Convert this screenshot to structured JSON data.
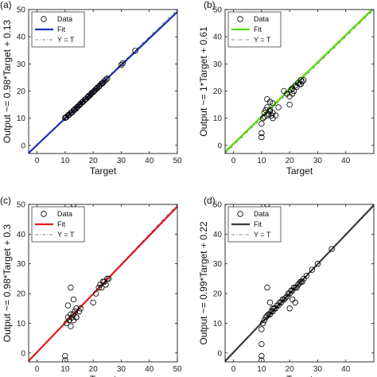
{
  "chart_data": [
    {
      "type": "scatter",
      "panel_label": "(a)",
      "xlabel": "Target",
      "ylabel": "Output ~= 0.98*Target + 0.13",
      "xlim": [
        -3,
        50
      ],
      "ylim": [
        -3,
        50
      ],
      "xticks": [
        0,
        10,
        20,
        30,
        40,
        50
      ],
      "yticks": [
        0,
        10,
        20,
        30,
        40,
        50
      ],
      "legend": {
        "placement": "top-left",
        "entries": [
          "Data",
          "Fit",
          "Y = T"
        ]
      },
      "fit": {
        "slope": 0.98,
        "intercept": 0.13,
        "color": "#1f2fb4"
      },
      "series": [
        {
          "name": "Data",
          "x": [
            10,
            10.5,
            11,
            11.5,
            12,
            12.5,
            13,
            13.5,
            14,
            14.5,
            15,
            15.5,
            16,
            16.5,
            17,
            17.5,
            18,
            18.5,
            19,
            19.5,
            20,
            20.5,
            21,
            21.5,
            22,
            22.5,
            23,
            23.5,
            24,
            24.5,
            25,
            10.2,
            11.2,
            12.3,
            13.3,
            14.2,
            15.3,
            16.2,
            17.2,
            18.3,
            19.2,
            20.3,
            21.3,
            22.2,
            23.3,
            30,
            30.5,
            35
          ],
          "y": [
            10.1,
            10.4,
            11,
            11.3,
            11.9,
            12.2,
            12.9,
            13.3,
            13.6,
            14.3,
            14.7,
            15.3,
            15.8,
            16.2,
            16.8,
            17.1,
            17.8,
            18.3,
            18.6,
            19.3,
            19.6,
            20.2,
            20.7,
            21.3,
            21.6,
            22.2,
            22.8,
            23.1,
            23.7,
            24.2,
            24.6,
            10.3,
            11.2,
            12.1,
            13.1,
            14,
            15,
            15.9,
            16.9,
            17.9,
            18.9,
            19.9,
            20.9,
            21.8,
            22.8,
            29.6,
            30.2,
            34.8
          ]
        }
      ]
    },
    {
      "type": "scatter",
      "panel_label": "(b)",
      "xlabel": "Target",
      "ylabel": "Output ~= 1*Target + 0.61",
      "xlim": [
        -3,
        50
      ],
      "ylim": [
        -3,
        50
      ],
      "xticks": [
        0,
        10,
        20,
        30,
        40
      ],
      "yticks": [
        0,
        10,
        20,
        30,
        40,
        50
      ],
      "legend": {
        "placement": "top-left",
        "entries": [
          "Data",
          "Fit",
          "Y = T"
        ]
      },
      "fit": {
        "slope": 1.0,
        "intercept": 0.61,
        "color": "#55e000"
      },
      "series": [
        {
          "name": "Data",
          "x": [
            10,
            10,
            10,
            10.5,
            11,
            11,
            11.5,
            12,
            12,
            12.5,
            13,
            13,
            13.5,
            14,
            14,
            15,
            16,
            18,
            19,
            20,
            20.5,
            21,
            21.5,
            22,
            22.5,
            23,
            23.5,
            24,
            24.5,
            25,
            20,
            21,
            24,
            12,
            13,
            14
          ],
          "y": [
            3,
            4.5,
            8,
            10,
            10.5,
            12,
            13,
            11,
            14,
            11.5,
            12.5,
            16,
            11,
            12,
            15.5,
            11,
            14,
            20,
            19,
            18,
            20.5,
            21,
            20,
            22,
            21.5,
            23,
            22.5,
            24,
            23.5,
            24,
            15,
            19,
            22.5,
            17,
            13,
            10
          ]
        }
      ]
    },
    {
      "type": "scatter",
      "panel_label": "(c)",
      "xlabel": "Target",
      "ylabel": "Output ~= 0.98*Target + 0.3",
      "xlim": [
        -3,
        50
      ],
      "ylim": [
        -3,
        50
      ],
      "xticks": [
        0,
        10,
        20,
        30,
        40,
        50
      ],
      "yticks": [
        0,
        10,
        20,
        30,
        40,
        50
      ],
      "legend": {
        "placement": "top-left",
        "entries": [
          "Data",
          "Fit",
          "Y = T"
        ]
      },
      "fit": {
        "slope": 0.98,
        "intercept": 0.3,
        "color": "#e0181e"
      },
      "series": [
        {
          "name": "Data",
          "x": [
            10,
            10,
            10.5,
            11,
            11,
            11.5,
            12,
            12.5,
            13,
            13,
            13.5,
            14,
            14,
            15,
            15.5,
            12,
            13,
            20,
            21,
            22,
            22.5,
            23,
            23.5,
            24,
            24.5,
            25,
            25.5,
            12,
            14,
            13
          ],
          "y": [
            -1,
            -2.5,
            10,
            12,
            16,
            11,
            13,
            12,
            11,
            13,
            14,
            15,
            12,
            14,
            15,
            22,
            50,
            17,
            20,
            22,
            23,
            22,
            24,
            24,
            23,
            25,
            25,
            9,
            12,
            18
          ]
        }
      ]
    },
    {
      "type": "scatter",
      "panel_label": "(d)",
      "xlabel": "Target",
      "ylabel": "Output ~= 0.99*Target + 0.22",
      "xlim": [
        -3,
        50
      ],
      "ylim": [
        -3,
        50
      ],
      "xticks": [
        0,
        10,
        20,
        30,
        40
      ],
      "yticks": [
        0,
        10,
        20,
        30,
        40,
        50
      ],
      "legend": {
        "placement": "top-left",
        "entries": [
          "Data",
          "Fit",
          "Y = T"
        ]
      },
      "fit": {
        "slope": 0.99,
        "intercept": 0.22,
        "color": "#3a3a3a"
      },
      "series": [
        {
          "name": "Data",
          "x": [
            10,
            10,
            10,
            10,
            10.5,
            11,
            11.5,
            12,
            12.5,
            13,
            13.5,
            14,
            14.5,
            15,
            15.5,
            16,
            16.5,
            17,
            17.5,
            18,
            18.5,
            19,
            19.5,
            20,
            20.5,
            21,
            21.5,
            22,
            22.5,
            23,
            23.5,
            24,
            24.5,
            25,
            26,
            28,
            30,
            35,
            12,
            13,
            14,
            20,
            21,
            22,
            12
          ],
          "y": [
            -2.5,
            -1,
            3,
            8,
            10,
            11,
            12,
            12.5,
            13,
            13,
            14,
            14,
            15,
            15,
            16,
            16,
            17,
            17,
            18,
            18,
            18.5,
            19,
            20,
            20,
            21,
            21,
            22,
            22,
            22,
            23,
            23.5,
            24,
            24,
            25,
            26,
            28,
            30,
            35,
            22,
            17,
            15,
            15,
            18,
            17,
            50
          ]
        }
      ]
    }
  ],
  "styles": {
    "data_marker_color": "#000000",
    "identity_line_color": "#666666",
    "axes_color": "#000000"
  }
}
